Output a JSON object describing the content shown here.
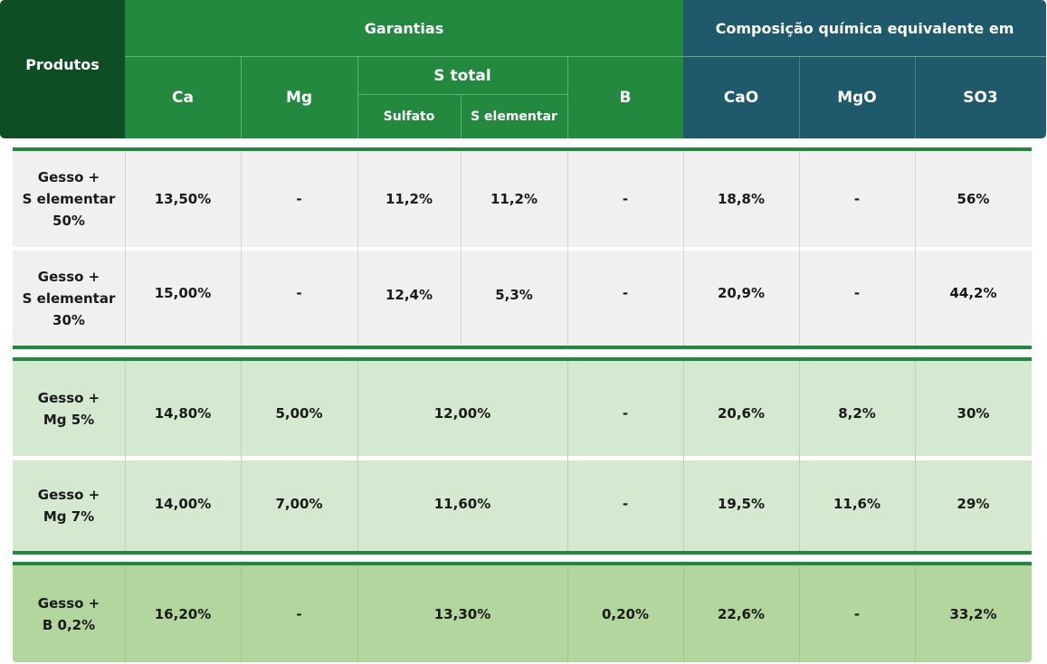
{
  "header": {
    "produtos": "Produtos",
    "garantias": "Garantias",
    "composicao": "Composição química equivalente em",
    "ca": "Ca",
    "mg": "Mg",
    "s_total": "S total",
    "sulfato": "Sulfato",
    "s_elementar": "S elementar",
    "b": "B",
    "cao": "CaO",
    "mgo": "MgO",
    "so3": "SO3"
  },
  "rows": [
    {
      "product_lines": [
        "Gesso +",
        "S elementar",
        "50%"
      ],
      "ca": "13,50%",
      "mg": "-",
      "sulfato": "11,2%",
      "s_elementar": "11,2%",
      "b": "-",
      "cao": "18,8%",
      "mgo": "-",
      "so3": "56%"
    },
    {
      "product_lines": [
        "Gesso +",
        "S elementar",
        "30%"
      ],
      "ca": "15,00%",
      "mg": "-",
      "sulfato": "12,4%",
      "s_elementar": "5,3%",
      "b": "-",
      "cao": "20,9%",
      "mgo": "-",
      "so3": "44,2%"
    },
    {
      "product_lines": [
        "Gesso +",
        "Mg 5%"
      ],
      "ca": "14,80%",
      "mg": "5,00%",
      "s_total": "12,00%",
      "b": "-",
      "cao": "20,6%",
      "mgo": "8,2%",
      "so3": "30%"
    },
    {
      "product_lines": [
        "Gesso +",
        "Mg 7%"
      ],
      "ca": "14,00%",
      "mg": "7,00%",
      "s_total": "11,60%",
      "b": "-",
      "cao": "19,5%",
      "mgo": "11,6%",
      "so3": "29%"
    },
    {
      "product_lines": [
        "Gesso +",
        "B 0,2%"
      ],
      "ca": "16,20%",
      "mg": "-",
      "s_total": "13,30%",
      "b": "0,20%",
      "cao": "22,6%",
      "mgo": "-",
      "so3": "33,2%"
    }
  ],
  "colors": {
    "produtos_bg": "#0f4d24",
    "garantias_bg": "#23893f",
    "composicao_bg": "#1e5a6c",
    "group1_bg": "#f0f0f0",
    "group2_bg": "#d5e8d0",
    "group3_bg": "#b3d59e",
    "separator": "#1f8a3e"
  }
}
